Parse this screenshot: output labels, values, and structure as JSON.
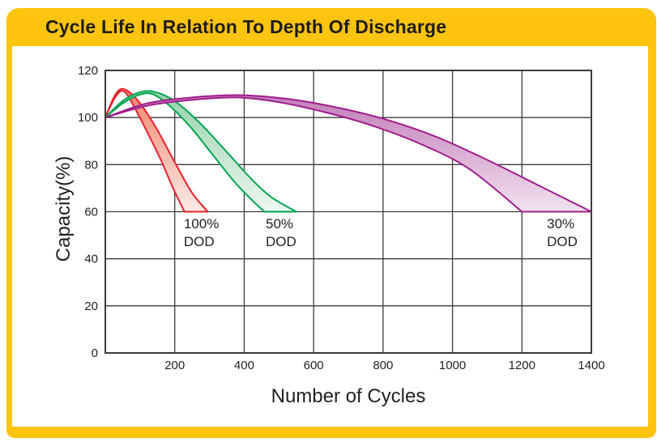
{
  "header": {
    "title": "Cycle Life In Relation To Depth Of Discharge"
  },
  "theme": {
    "frame_yellow": "#FFC40E",
    "title_text": "#1D1D1B",
    "panel_bg": "#FFFFFF",
    "grid_color": "#3C3C3B",
    "tick_text": "#231F20"
  },
  "chart_data": {
    "type": "area",
    "title": "Cycle Life In Relation To Depth Of Discharge",
    "xlabel": "Number of Cycles",
    "ylabel": "Capacity(%)",
    "xlim": [
      0,
      1400
    ],
    "ylim": [
      0,
      120
    ],
    "xticks": [
      200,
      400,
      600,
      800,
      1000,
      1200,
      1400
    ],
    "yticks": [
      0,
      20,
      40,
      60,
      80,
      100,
      120
    ],
    "grid": true,
    "legend_position": "in-plot-labels",
    "series": [
      {
        "name": "100% DOD",
        "label_lines": [
          "100%",
          "DOD"
        ],
        "label_xy": [
          226,
          57.5
        ],
        "stroke": "#E8202D",
        "fill_top": "#F1836D",
        "fill_bottom": "#FCEBE5",
        "upper": [
          [
            0,
            100
          ],
          [
            30,
            110
          ],
          [
            55,
            112
          ],
          [
            95,
            107
          ],
          [
            145,
            96
          ],
          [
            200,
            81
          ],
          [
            250,
            68
          ],
          [
            295,
            60
          ]
        ],
        "lower": [
          [
            0,
            100
          ],
          [
            30,
            109
          ],
          [
            55,
            111
          ],
          [
            85,
            104
          ],
          [
            120,
            94
          ],
          [
            160,
            82
          ],
          [
            195,
            70
          ],
          [
            228,
            60
          ]
        ]
      },
      {
        "name": "50% DOD",
        "label_lines": [
          "50%",
          "DOD"
        ],
        "label_xy": [
          462,
          57.5
        ],
        "stroke": "#00A551",
        "fill_top": "#96D1AC",
        "fill_bottom": "#EDF8F1",
        "upper": [
          [
            0,
            100
          ],
          [
            50,
            107
          ],
          [
            95,
            110.5
          ],
          [
            140,
            111
          ],
          [
            200,
            107
          ],
          [
            270,
            98
          ],
          [
            340,
            87
          ],
          [
            420,
            74
          ],
          [
            480,
            66
          ],
          [
            550,
            60
          ]
        ],
        "lower": [
          [
            0,
            100
          ],
          [
            50,
            106
          ],
          [
            95,
            109.5
          ],
          [
            135,
            110
          ],
          [
            185,
            105
          ],
          [
            245,
            96
          ],
          [
            305,
            85
          ],
          [
            370,
            73
          ],
          [
            415,
            66
          ],
          [
            458,
            60
          ]
        ]
      },
      {
        "name": "30% DOD",
        "label_lines": [
          "30%",
          "DOD"
        ],
        "label_xy": [
          1272,
          57.5
        ],
        "stroke": "#A01D8C",
        "fill_top": "#C27CB9",
        "fill_bottom": "#F2E2F0",
        "upper": [
          [
            0,
            100
          ],
          [
            120,
            106
          ],
          [
            250,
            108.5
          ],
          [
            380,
            109.5
          ],
          [
            520,
            108
          ],
          [
            660,
            104.5
          ],
          [
            800,
            99.5
          ],
          [
            950,
            92
          ],
          [
            1100,
            82
          ],
          [
            1250,
            71
          ],
          [
            1400,
            60
          ]
        ],
        "lower": [
          [
            0,
            100
          ],
          [
            120,
            105
          ],
          [
            250,
            107.5
          ],
          [
            380,
            108.5
          ],
          [
            500,
            106.5
          ],
          [
            640,
            102
          ],
          [
            780,
            96
          ],
          [
            920,
            88
          ],
          [
            1050,
            78
          ],
          [
            1200,
            60
          ]
        ]
      }
    ]
  }
}
